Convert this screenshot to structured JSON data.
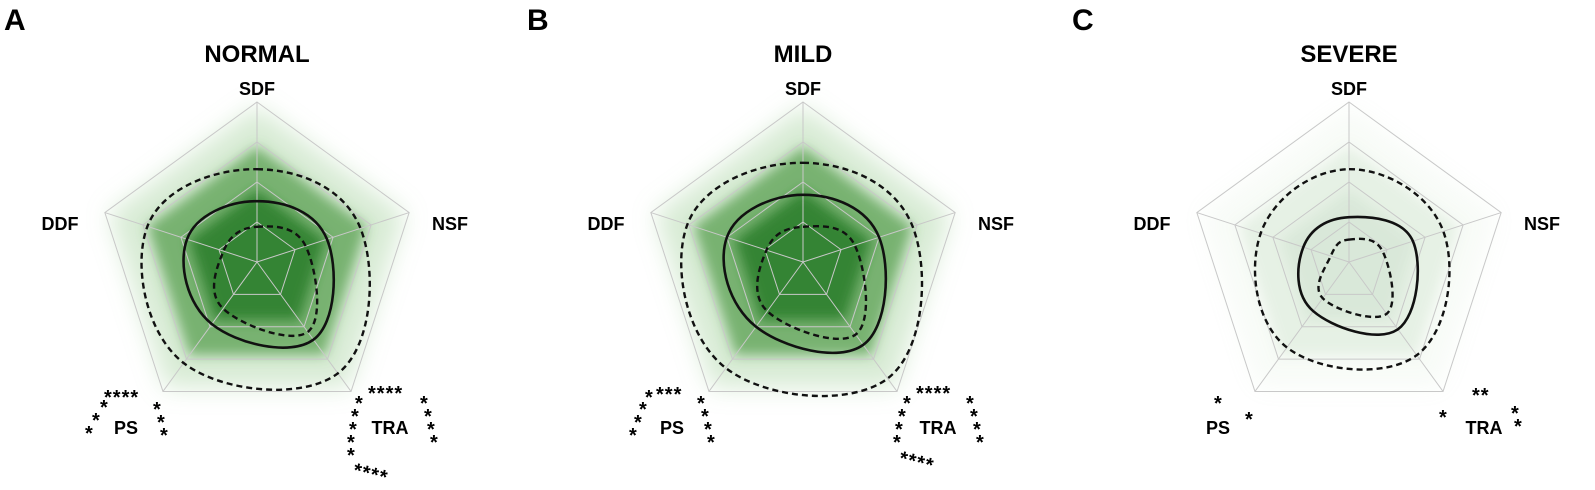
{
  "axes": [
    "SDF",
    "NSF",
    "TRA",
    "PS",
    "DDF"
  ],
  "panels": [
    {
      "letter": "A",
      "title": "NORMAL",
      "shade_opacity": 1.0,
      "radar": {
        "outer_dashed": [
          0.58,
          0.68,
          0.86,
          0.78,
          0.72
        ],
        "solid": [
          0.38,
          0.46,
          0.6,
          0.48,
          0.46
        ],
        "inner_dashed": [
          0.22,
          0.32,
          0.54,
          0.36,
          0.22
        ]
      },
      "annotations": {
        "ps_left": [
          "*",
          "*",
          "*"
        ],
        "ps_top": "****",
        "ps_right": [
          "*",
          "*",
          "*"
        ],
        "tra_top": "****",
        "tra_left": [
          "*",
          "*",
          "*",
          "*",
          "*"
        ],
        "tra_right": [
          "*",
          "*",
          "*",
          "*"
        ],
        "tra_bottom": "****"
      }
    },
    {
      "letter": "B",
      "title": "MILD",
      "shade_opacity": 1.0,
      "radar": {
        "outer_dashed": [
          0.62,
          0.72,
          0.9,
          0.82,
          0.76
        ],
        "solid": [
          0.42,
          0.5,
          0.64,
          0.5,
          0.5
        ],
        "inner_dashed": [
          0.22,
          0.34,
          0.56,
          0.38,
          0.24
        ]
      },
      "annotations": {
        "ps_left": [
          "*",
          "*",
          "*",
          "*"
        ],
        "ps_top": "***",
        "ps_right": [
          "*",
          "*",
          "*",
          "*"
        ],
        "tra_top": "****",
        "tra_left": [
          "*",
          "*",
          "*",
          "*"
        ],
        "tra_right": [
          "*",
          "*",
          "*",
          "*"
        ],
        "tra_bottom": "****"
      }
    },
    {
      "letter": "C",
      "title": "SEVERE",
      "shade_opacity": 0.18,
      "radar": {
        "outer_dashed": [
          0.58,
          0.62,
          0.72,
          0.66,
          0.58
        ],
        "solid": [
          0.28,
          0.42,
          0.52,
          0.38,
          0.3
        ],
        "inner_dashed": [
          0.14,
          0.22,
          0.4,
          0.28,
          0.12
        ]
      },
      "annotations": {
        "ps_top_star": "*",
        "ps_right_star": "*",
        "tra_left_star": "*",
        "tra_top": "**",
        "tra_right": [
          "*",
          "*"
        ]
      }
    }
  ]
}
